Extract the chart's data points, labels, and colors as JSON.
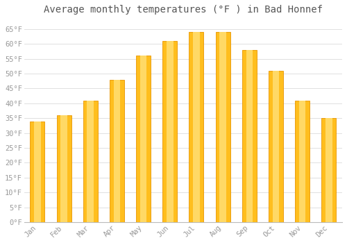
{
  "title": "Average monthly temperatures (°F ) in Bad Honnef",
  "months": [
    "Jan",
    "Feb",
    "Mar",
    "Apr",
    "May",
    "Jun",
    "Jul",
    "Aug",
    "Sep",
    "Oct",
    "Nov",
    "Dec"
  ],
  "values": [
    34,
    36,
    41,
    48,
    56,
    61,
    64,
    64,
    58,
    51,
    41,
    35
  ],
  "bar_color_main": "#FFBE1E",
  "bar_color_light": "#FFD966",
  "bar_edge_color": "#E89400",
  "background_color": "#FFFFFF",
  "grid_color": "#E0E0E0",
  "ylim": [
    0,
    68
  ],
  "yticks": [
    0,
    5,
    10,
    15,
    20,
    25,
    30,
    35,
    40,
    45,
    50,
    55,
    60,
    65
  ],
  "title_fontsize": 10,
  "tick_fontsize": 7.5,
  "tick_color": "#999999",
  "bar_width": 0.55
}
